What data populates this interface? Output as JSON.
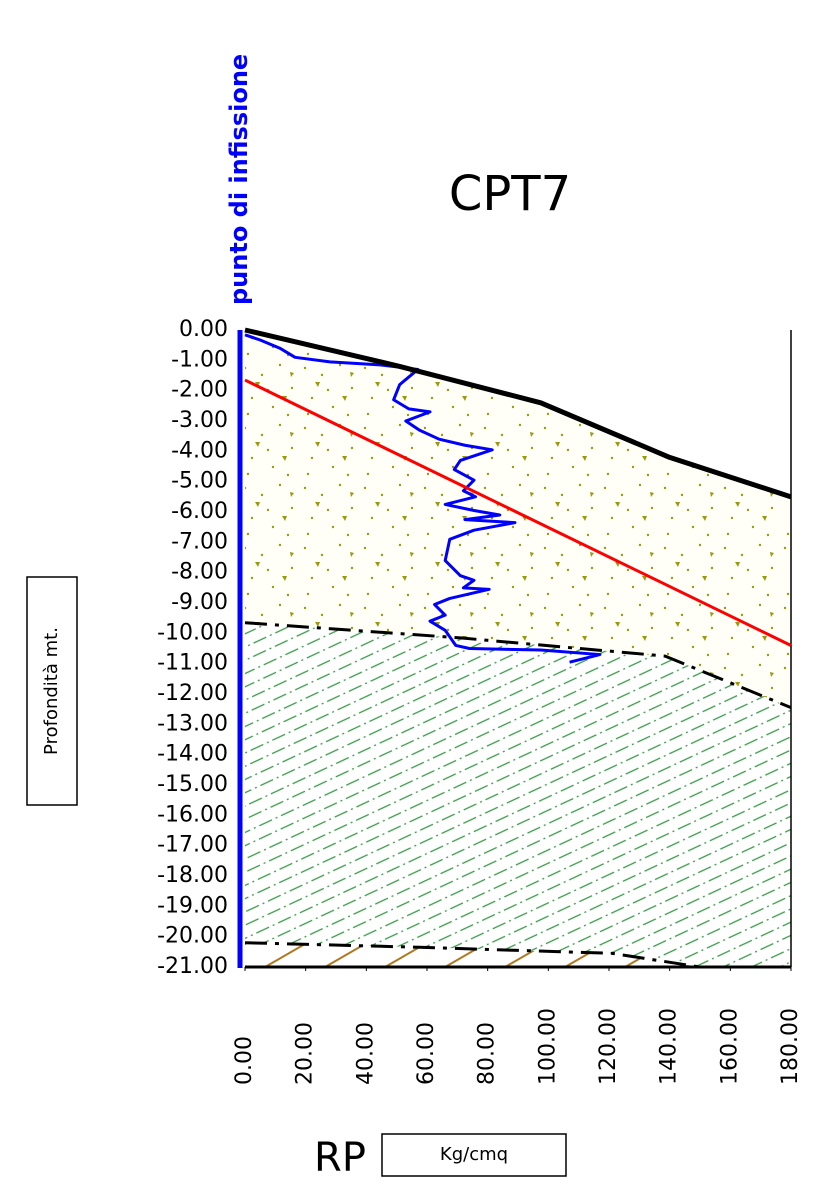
{
  "chart_data": {
    "type": "line",
    "title": "CPT7",
    "side_label": "punto di infissione",
    "y_label": "Profondità  mt.",
    "x_label": "RP",
    "x_unit": "Kg/cmq",
    "xlim": [
      0,
      180
    ],
    "ylim": [
      -21,
      0
    ],
    "xticks": [
      {
        "value": 0,
        "label": "0.00"
      },
      {
        "value": 20,
        "label": "20.00"
      },
      {
        "value": 40,
        "label": "40.00"
      },
      {
        "value": 60,
        "label": "60.00"
      },
      {
        "value": 80,
        "label": "80.00"
      },
      {
        "value": 100,
        "label": "100.00"
      },
      {
        "value": 120,
        "label": "120.00"
      },
      {
        "value": 140,
        "label": "140.00"
      },
      {
        "value": 160,
        "label": "160.00"
      },
      {
        "value": 180,
        "label": "180.00"
      }
    ],
    "yticks": [
      {
        "value": 0,
        "label": "0.00"
      },
      {
        "value": -1,
        "label": "-1.00"
      },
      {
        "value": -2,
        "label": "-2.00"
      },
      {
        "value": -3,
        "label": "-3.00"
      },
      {
        "value": -4,
        "label": "-4.00"
      },
      {
        "value": -5,
        "label": "-5.00"
      },
      {
        "value": -6,
        "label": "-6.00"
      },
      {
        "value": -7,
        "label": "-7.00"
      },
      {
        "value": -8,
        "label": "-8.00"
      },
      {
        "value": -9,
        "label": "-9.00"
      },
      {
        "value": -10,
        "label": "-10.00"
      },
      {
        "value": -11,
        "label": "-11.00"
      },
      {
        "value": -12,
        "label": "-12.00"
      },
      {
        "value": -13,
        "label": "-13.00"
      },
      {
        "value": -14,
        "label": "-14.00"
      },
      {
        "value": -15,
        "label": "-15.00"
      },
      {
        "value": -16,
        "label": "-16.00"
      },
      {
        "value": -17,
        "label": "-17.00"
      },
      {
        "value": -18,
        "label": "-18.00"
      },
      {
        "value": -19,
        "label": "-19.00"
      },
      {
        "value": -20,
        "label": "-20.00"
      },
      {
        "value": -21,
        "label": "-21.00"
      }
    ],
    "series": [
      {
        "color": "#0000ff",
        "width": 3,
        "dashed": false,
        "x": [
          0,
          5,
          11.5,
          16.5,
          28,
          44.5,
          57,
          51,
          49,
          54,
          61,
          53,
          57.5,
          64,
          72.5,
          81.5,
          71,
          69,
          75.5,
          72,
          76,
          66,
          75.5,
          84,
          72.5,
          89,
          75.5,
          67.5,
          66,
          71,
          75.5,
          72,
          80.5,
          67.5,
          62.5,
          66,
          61,
          66,
          69.5,
          74,
          97.5,
          117,
          107
        ],
        "values": [
          -0.16,
          -0.33,
          -0.6,
          -0.9,
          -1.05,
          -1.15,
          -1.3,
          -1.8,
          -2.3,
          -2.6,
          -2.7,
          -3.0,
          -3.3,
          -3.6,
          -3.8,
          -3.95,
          -4.3,
          -4.6,
          -4.95,
          -5.3,
          -5.5,
          -5.75,
          -5.95,
          -6.1,
          -6.25,
          -6.35,
          -6.6,
          -6.9,
          -7.6,
          -8.1,
          -8.25,
          -8.5,
          -8.55,
          -8.85,
          -9.05,
          -9.4,
          -9.6,
          -9.9,
          -10.4,
          -10.5,
          -10.55,
          -10.7,
          -10.95
        ]
      },
      {
        "color": "#000000",
        "width": 5,
        "dashed": false,
        "x": [
          0,
          51,
          97.5,
          140,
          180
        ],
        "values": [
          0,
          -1.2,
          -2.4,
          -4.2,
          -5.5
        ]
      },
      {
        "color": "#ff0000",
        "width": 3,
        "dashed": false,
        "x": [
          0,
          180
        ],
        "values": [
          -1.65,
          -10.4
        ]
      },
      {
        "color": "#000000",
        "width": 3,
        "dashed": true,
        "x": [
          0,
          71,
          138.5,
          180
        ],
        "values": [
          -9.65,
          -10.15,
          -10.75,
          -12.45
        ]
      },
      {
        "color": "#000000",
        "width": 3,
        "dashed": true,
        "x": [
          0,
          57.5,
          121,
          150,
          180
        ],
        "values": [
          -20.2,
          -20.35,
          -20.55,
          -21,
          -21
        ]
      }
    ]
  }
}
